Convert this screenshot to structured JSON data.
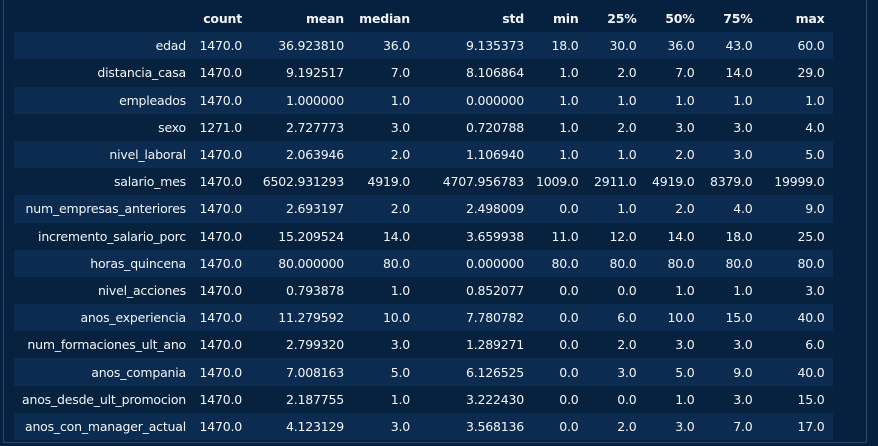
{
  "columns": [
    "count",
    "mean",
    "median",
    "std",
    "min",
    "25%",
    "50%",
    "75%",
    "max"
  ],
  "rows": [
    {
      "label": "edad",
      "values": [
        "1470.0",
        "36.923810",
        "36.0",
        "9.135373",
        "18.0",
        "30.0",
        "36.0",
        "43.0",
        "60.0"
      ]
    },
    {
      "label": "distancia_casa",
      "values": [
        "1470.0",
        "9.192517",
        "7.0",
        "8.106864",
        "1.0",
        "2.0",
        "7.0",
        "14.0",
        "29.0"
      ]
    },
    {
      "label": "empleados",
      "values": [
        "1470.0",
        "1.000000",
        "1.0",
        "0.000000",
        "1.0",
        "1.0",
        "1.0",
        "1.0",
        "1.0"
      ]
    },
    {
      "label": "sexo",
      "values": [
        "1271.0",
        "2.727773",
        "3.0",
        "0.720788",
        "1.0",
        "2.0",
        "3.0",
        "3.0",
        "4.0"
      ]
    },
    {
      "label": "nivel_laboral",
      "values": [
        "1470.0",
        "2.063946",
        "2.0",
        "1.106940",
        "1.0",
        "1.0",
        "2.0",
        "3.0",
        "5.0"
      ]
    },
    {
      "label": "salario_mes",
      "values": [
        "1470.0",
        "6502.931293",
        "4919.0",
        "4707.956783",
        "1009.0",
        "2911.0",
        "4919.0",
        "8379.0",
        "19999.0"
      ]
    },
    {
      "label": "num_empresas_anteriores",
      "values": [
        "1470.0",
        "2.693197",
        "2.0",
        "2.498009",
        "0.0",
        "1.0",
        "2.0",
        "4.0",
        "9.0"
      ]
    },
    {
      "label": "incremento_salario_porc",
      "values": [
        "1470.0",
        "15.209524",
        "14.0",
        "3.659938",
        "11.0",
        "12.0",
        "14.0",
        "18.0",
        "25.0"
      ]
    },
    {
      "label": "horas_quincena",
      "values": [
        "1470.0",
        "80.000000",
        "80.0",
        "0.000000",
        "80.0",
        "80.0",
        "80.0",
        "80.0",
        "80.0"
      ]
    },
    {
      "label": "nivel_acciones",
      "values": [
        "1470.0",
        "0.793878",
        "1.0",
        "0.852077",
        "0.0",
        "0.0",
        "1.0",
        "1.0",
        "3.0"
      ]
    },
    {
      "label": "anos_experiencia",
      "values": [
        "1470.0",
        "11.279592",
        "10.0",
        "7.780782",
        "0.0",
        "6.0",
        "10.0",
        "15.0",
        "40.0"
      ]
    },
    {
      "label": "num_formaciones_ult_ano",
      "values": [
        "1470.0",
        "2.799320",
        "3.0",
        "1.289271",
        "0.0",
        "2.0",
        "3.0",
        "3.0",
        "6.0"
      ]
    },
    {
      "label": "anos_compania",
      "values": [
        "1470.0",
        "7.008163",
        "5.0",
        "6.126525",
        "0.0",
        "3.0",
        "5.0",
        "9.0",
        "40.0"
      ]
    },
    {
      "label": "anos_desde_ult_promocion",
      "values": [
        "1470.0",
        "2.187755",
        "1.0",
        "3.222430",
        "0.0",
        "0.0",
        "1.0",
        "3.0",
        "15.0"
      ]
    },
    {
      "label": "anos_con_manager_actual",
      "values": [
        "1470.0",
        "4.123129",
        "3.0",
        "3.568136",
        "0.0",
        "2.0",
        "3.0",
        "7.0",
        "17.0"
      ]
    }
  ],
  "colors": {
    "background": "#062040",
    "row_odd": "#0b2c50",
    "row_even": "#07223f",
    "text": "#f2f5f8"
  }
}
